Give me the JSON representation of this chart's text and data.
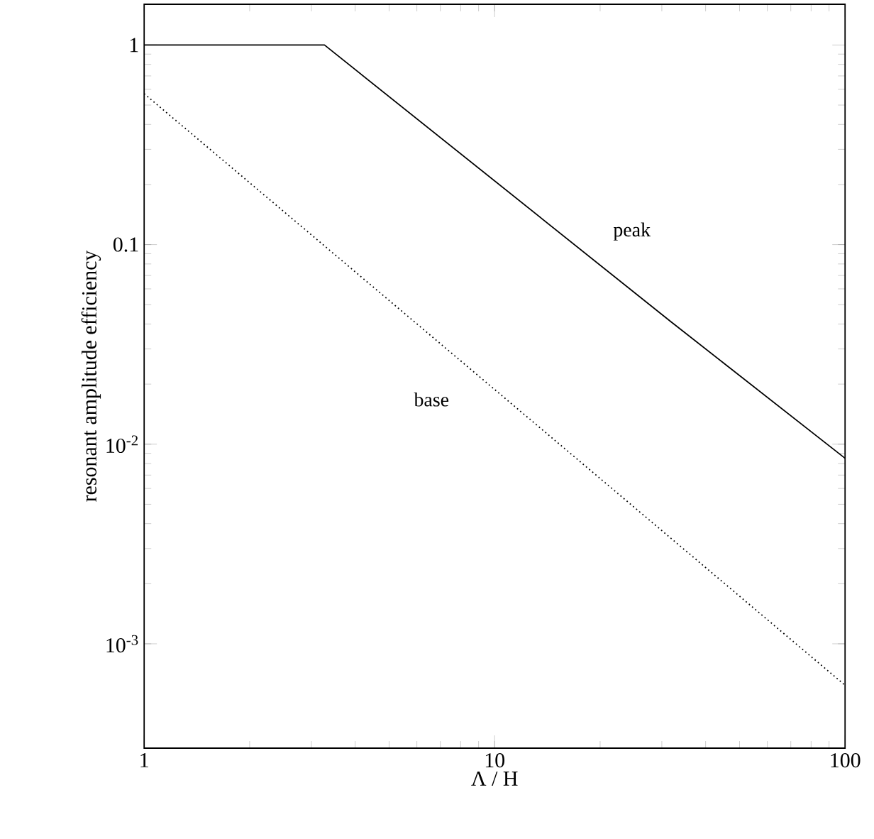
{
  "chart_data": {
    "type": "line",
    "xlabel": "Λ / H",
    "ylabel": "resonant amplitude efficiency",
    "log": "xy",
    "grid": false,
    "xlim": [
      1,
      100
    ],
    "ylim": [
      0.0003,
      1.6
    ],
    "xticks": [
      1,
      10,
      100
    ],
    "yticks": [
      {
        "value": 0.001,
        "label": "10$^{-3}$"
      },
      {
        "value": 0.01,
        "label": "10$^{-2}$"
      },
      {
        "value": 0.1,
        "label": "0.1"
      },
      {
        "value": 1,
        "label": "1"
      }
    ],
    "series": [
      {
        "name": "peak",
        "color": "#000000",
        "line_style": "solid",
        "x": [
          1,
          3.27,
          31.9,
          100
        ],
        "values": [
          1,
          1,
          0.041,
          0.0085
        ]
      },
      {
        "name": "base",
        "color": "#000000",
        "line_style": "dotted",
        "x": [
          1,
          100
        ],
        "values": [
          0.57,
          0.00062
        ]
      }
    ]
  }
}
